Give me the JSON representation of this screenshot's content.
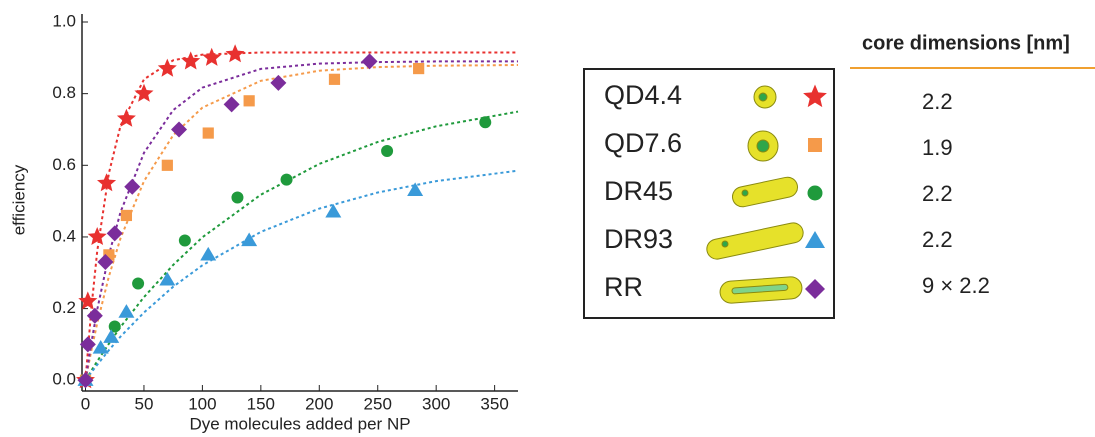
{
  "chart_data": {
    "type": "scatter",
    "x_label": "Dye molecules added per NP",
    "y_label": "efficiency",
    "xlim": [
      -3,
      370
    ],
    "ylim": [
      -0.03,
      1.0
    ],
    "xticks": [
      0,
      50,
      100,
      150,
      200,
      250,
      300,
      350
    ],
    "yticks": [
      {
        "value": 0,
        "label": "0.0"
      },
      0.2,
      0.4,
      0.6,
      0.8,
      {
        "value": 1,
        "label": "1.0"
      }
    ],
    "series": [
      {
        "name": "QD4.4",
        "color": "#e8312f",
        "marker": "star",
        "x": [
          0,
          2,
          10,
          18,
          35,
          50,
          70,
          90,
          108,
          128
        ],
        "values": [
          0,
          0.22,
          0.4,
          0.55,
          0.73,
          0.8,
          0.87,
          0.89,
          0.9,
          0.91
        ],
        "fit": {
          "x": [
            0,
            5,
            10,
            20,
            30,
            50,
            75,
            100,
            150,
            200,
            250,
            300,
            370
          ],
          "values": [
            0,
            0.202,
            0.36,
            0.578,
            0.711,
            0.84,
            0.893,
            0.909,
            0.915,
            0.915,
            0.915,
            0.915,
            0.915
          ]
        }
      },
      {
        "name": "QD7.6",
        "color": "#f59a4a",
        "marker": "square",
        "x": [
          0,
          20,
          35,
          70,
          105,
          140,
          213,
          285
        ],
        "values": [
          0,
          0.35,
          0.46,
          0.6,
          0.69,
          0.78,
          0.84,
          0.87
        ],
        "fit": {
          "x": [
            0,
            5,
            10,
            20,
            30,
            50,
            75,
            100,
            150,
            200,
            250,
            300,
            370
          ],
          "values": [
            0,
            0.084,
            0.159,
            0.29,
            0.397,
            0.556,
            0.684,
            0.761,
            0.836,
            0.864,
            0.874,
            0.878,
            0.88
          ]
        }
      },
      {
        "name": "DR45",
        "color": "#1f9a3c",
        "marker": "circle",
        "x": [
          0,
          25,
          45,
          85,
          130,
          172,
          258,
          342
        ],
        "values": [
          0,
          0.15,
          0.27,
          0.39,
          0.51,
          0.56,
          0.64,
          0.72
        ],
        "fit": {
          "x": [
            0,
            5,
            10,
            20,
            30,
            50,
            75,
            100,
            150,
            200,
            250,
            300,
            370
          ],
          "values": [
            0,
            0.027,
            0.053,
            0.102,
            0.149,
            0.232,
            0.322,
            0.399,
            0.518,
            0.604,
            0.665,
            0.709,
            0.75
          ]
        }
      },
      {
        "name": "DR93",
        "color": "#3a9ad9",
        "marker": "triangle",
        "x": [
          0,
          13,
          22,
          35,
          70,
          105,
          140,
          212,
          282
        ],
        "values": [
          0,
          0.09,
          0.12,
          0.19,
          0.28,
          0.35,
          0.39,
          0.47,
          0.53
        ],
        "fit": {
          "x": [
            0,
            5,
            10,
            20,
            30,
            50,
            75,
            100,
            150,
            200,
            250,
            300,
            370
          ],
          "values": [
            0,
            0.022,
            0.043,
            0.084,
            0.122,
            0.189,
            0.261,
            0.321,
            0.414,
            0.479,
            0.524,
            0.556,
            0.585
          ]
        }
      },
      {
        "name": "RR",
        "color": "#7b2d9b",
        "marker": "diamond",
        "x": [
          0,
          2,
          8,
          17,
          25,
          40,
          80,
          125,
          165,
          243
        ],
        "values": [
          0,
          0.1,
          0.18,
          0.33,
          0.41,
          0.54,
          0.7,
          0.77,
          0.83,
          0.89
        ],
        "fit": {
          "x": [
            0,
            5,
            10,
            20,
            30,
            50,
            75,
            100,
            150,
            200,
            250,
            300,
            370
          ],
          "values": [
            0,
            0.105,
            0.197,
            0.35,
            0.47,
            0.635,
            0.754,
            0.817,
            0.869,
            0.884,
            0.888,
            0.89,
            0.89
          ]
        }
      }
    ]
  },
  "core_dimensions": {
    "header": "core dimensions [nm]",
    "rows": [
      "2.2",
      "1.9",
      "2.2",
      "2.2",
      "9 × 2.2"
    ]
  }
}
